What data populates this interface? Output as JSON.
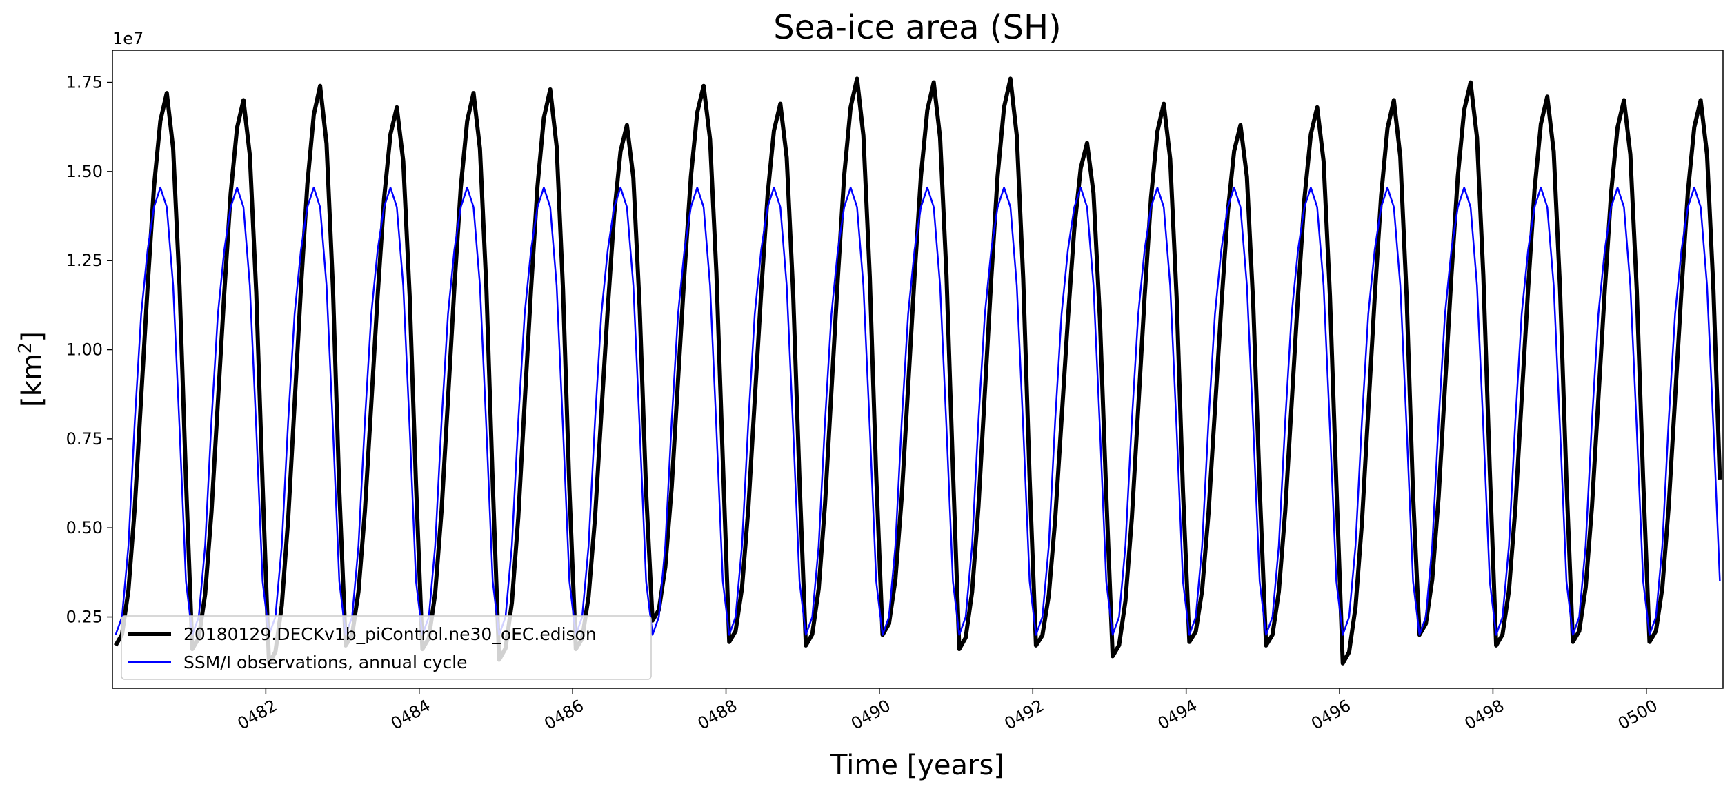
{
  "chart_data": {
    "type": "line",
    "title": "Sea-ice area (SH)",
    "xlabel": "Time [years]",
    "ylabel": "[km²]",
    "y_multiplier_label": "1e7",
    "xlim": [
      480.0,
      501.0
    ],
    "ylim": [
      0.05,
      1.84
    ],
    "y_unit_scale": 10000000,
    "xticks": [
      482,
      484,
      486,
      488,
      490,
      492,
      494,
      496,
      498,
      500
    ],
    "xtick_labels": [
      "0482",
      "0484",
      "0486",
      "0488",
      "0490",
      "0492",
      "0494",
      "0496",
      "0498",
      "0500"
    ],
    "yticks": [
      0.25,
      0.5,
      0.75,
      1.0,
      1.25,
      1.5,
      1.75
    ],
    "ytick_labels": [
      "0.25",
      "0.50",
      "0.75",
      "1.00",
      "1.25",
      "1.50",
      "1.75"
    ],
    "grid": false,
    "legend_position": "lower-left",
    "colors": {
      "model": "#000000",
      "observations": "#0000ff"
    },
    "monthly_shape": [
      0.0,
      0.02,
      0.1,
      0.25,
      0.45,
      0.65,
      0.83,
      0.95,
      1.0,
      0.9,
      0.65,
      0.3
    ],
    "observations_annual_cycle": [
      0.2,
      0.25,
      0.45,
      0.8,
      1.1,
      1.28,
      1.4,
      1.455,
      1.4,
      1.18,
      0.78,
      0.35
    ],
    "series": [
      {
        "name": "20180129.DECKv1b_piControl.ne30_oEC.edison",
        "role": "model",
        "annual_minimum": [
          0.17,
          0.16,
          0.12,
          0.17,
          0.16,
          0.13,
          0.16,
          0.24,
          0.18,
          0.17,
          0.2,
          0.16,
          0.17,
          0.14,
          0.18,
          0.17,
          0.12,
          0.2,
          0.17,
          0.18,
          0.18
        ],
        "annual_maximum": [
          1.72,
          1.7,
          1.74,
          1.68,
          1.72,
          1.73,
          1.63,
          1.74,
          1.69,
          1.76,
          1.75,
          1.76,
          1.58,
          1.69,
          1.63,
          1.68,
          1.7,
          1.75,
          1.71,
          1.7,
          1.7
        ]
      },
      {
        "name": "SSM/I observations, annual cycle",
        "role": "observations",
        "annual_minimum": [
          0.2,
          0.2,
          0.2,
          0.2,
          0.2,
          0.2,
          0.2,
          0.2,
          0.2,
          0.2,
          0.2,
          0.2,
          0.2,
          0.2,
          0.2,
          0.2,
          0.2,
          0.2,
          0.2,
          0.2,
          0.2
        ],
        "annual_maximum": [
          1.455,
          1.455,
          1.455,
          1.455,
          1.455,
          1.455,
          1.455,
          1.455,
          1.455,
          1.455,
          1.455,
          1.455,
          1.455,
          1.455,
          1.455,
          1.455,
          1.455,
          1.455,
          1.455,
          1.455,
          1.455
        ]
      }
    ]
  }
}
